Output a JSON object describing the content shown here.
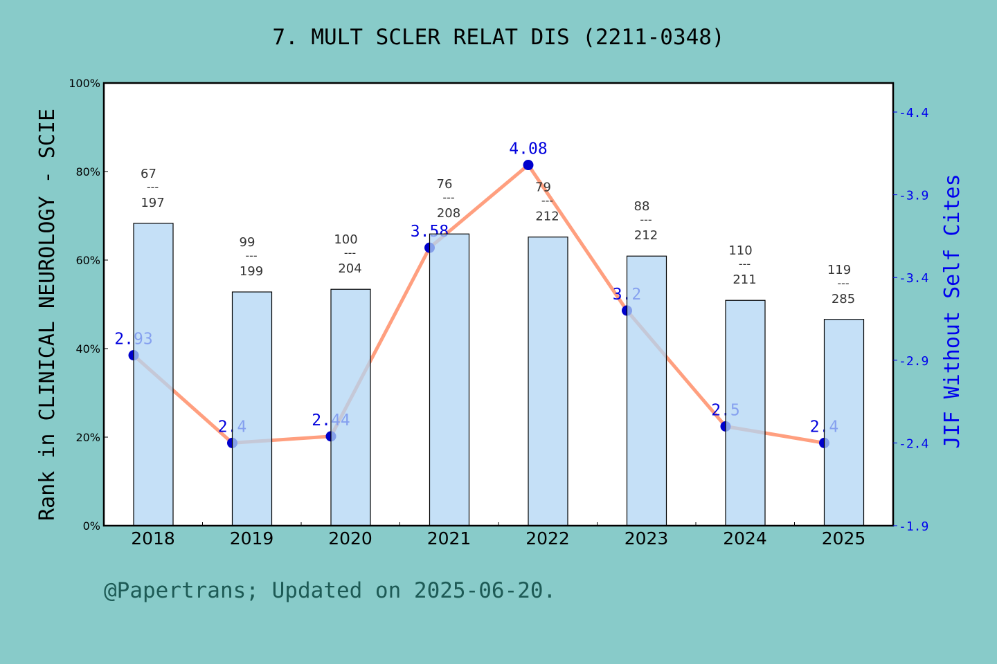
{
  "title": "7. MULT SCLER RELAT DIS (2211-0348)",
  "footer": "@Papertrans; Updated on 2025-06-20.",
  "chart_data": {
    "type": "bar+line",
    "categories": [
      "2018",
      "2019",
      "2020",
      "2021",
      "2022",
      "2023",
      "2024",
      "2025"
    ],
    "ylabel": "Rank in CLINICAL NEUROLOGY - SCIE",
    "y2label": "JIF Without Self Cites",
    "ylim": [
      0,
      100
    ],
    "y_ticks": [
      "0%",
      "20%",
      "40%",
      "60%",
      "80%",
      "100%"
    ],
    "y2lim": [
      1.9,
      4.6
    ],
    "y2_ticks": [
      "1.9",
      "2.4",
      "2.9",
      "3.4",
      "3.9",
      "4.4"
    ],
    "grid": false,
    "bars": {
      "values": [
        68.3,
        52.8,
        53.4,
        65.9,
        65.2,
        60.9,
        50.9,
        46.6
      ],
      "rank_labels": [
        {
          "rank": "67",
          "total": "197"
        },
        {
          "rank": "99",
          "total": "199"
        },
        {
          "rank": "100",
          "total": "204"
        },
        {
          "rank": "76",
          "total": "208"
        },
        {
          "rank": "79",
          "total": "212"
        },
        {
          "rank": "88",
          "total": "212"
        },
        {
          "rank": "110",
          "total": "211"
        },
        {
          "rank": "119",
          "total": "285"
        }
      ],
      "color": "#c5e0f7"
    },
    "line": {
      "values": [
        2.93,
        2.4,
        2.44,
        3.58,
        4.08,
        3.2,
        2.5,
        2.4
      ],
      "labels": [
        "2.93",
        "2.4",
        "2.44",
        "3.58",
        "4.08",
        "3.2",
        "2.5",
        "2.4"
      ],
      "color": "#ff9f7f",
      "marker_color": "#0000cc"
    }
  }
}
